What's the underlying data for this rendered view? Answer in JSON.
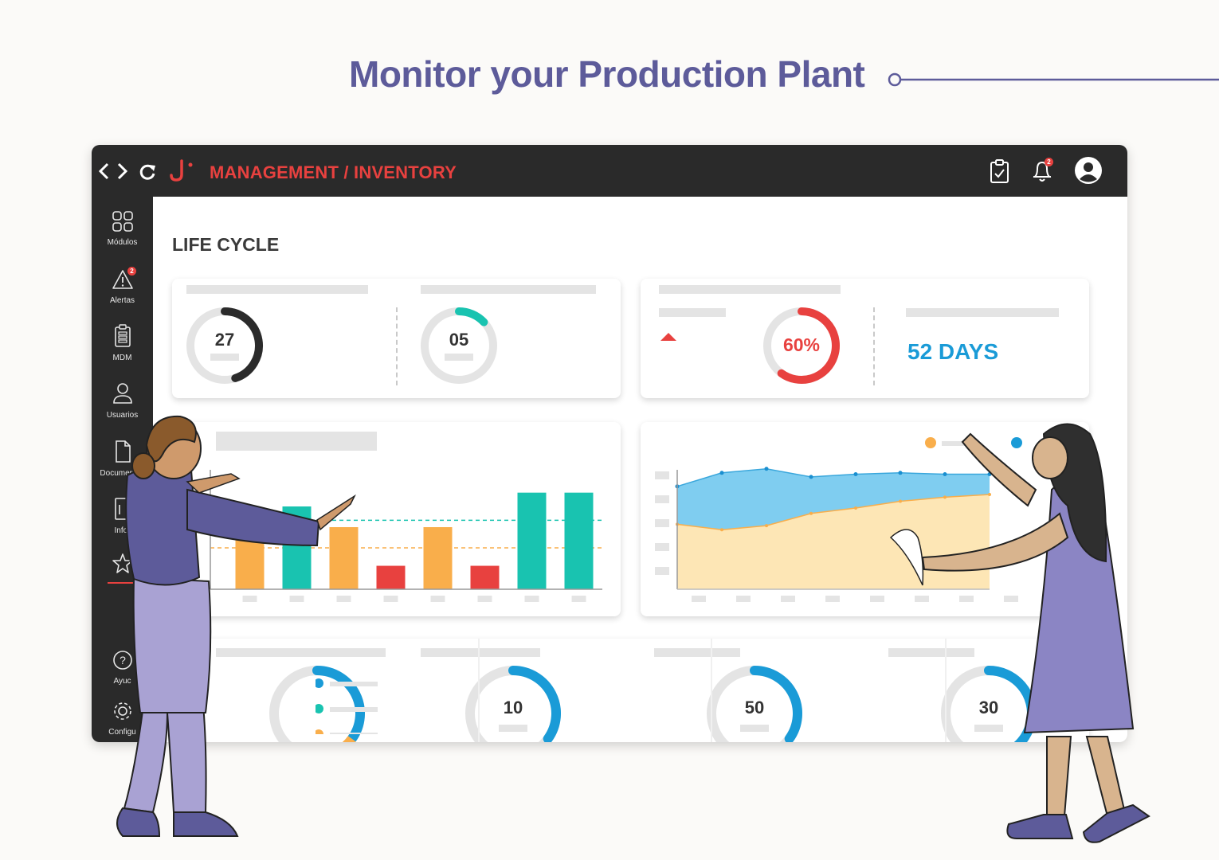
{
  "headline": "Monitor your Production Plant",
  "topbar": {
    "breadcrumb": "MANAGEMENT / INVENTORY",
    "notification_badge": "2",
    "icons": [
      "code-icon",
      "refresh-icon",
      "brand-logo-icon",
      "clipboard-check-icon",
      "bell-icon",
      "user-avatar-icon"
    ]
  },
  "sidebar": {
    "items": [
      {
        "label": "Módulos",
        "icon": "modules-grid-icon"
      },
      {
        "label": "Alertas",
        "icon": "alert-triangle-icon",
        "badge": "2"
      },
      {
        "label": "MDM",
        "icon": "clipboard-list-icon"
      },
      {
        "label": "Usuarios",
        "icon": "user-icon"
      },
      {
        "label": "Documentos",
        "icon": "document-icon"
      },
      {
        "label": "Infor",
        "icon": "report-icon"
      },
      {
        "label": "",
        "icon": "star-icon"
      },
      {
        "label": "Ayuc",
        "icon": "help-icon"
      },
      {
        "label": "Configu",
        "icon": "settings-gear-icon"
      }
    ]
  },
  "main": {
    "title": "LIFE CYCLE",
    "kpi_left": {
      "gauges": [
        {
          "value": "27",
          "fraction": 0.45,
          "color": "#2b2b2b"
        },
        {
          "value": "05",
          "fraction": 0.13,
          "color": "#19c3b0"
        }
      ]
    },
    "kpi_right": {
      "percent": "60%",
      "percent_fraction": 0.6,
      "days": "52 DAYS",
      "trend": "up",
      "colors": {
        "percent": "#e8413f",
        "days": "#1a9bd7"
      }
    },
    "bottom_gauges": [
      {
        "value": "",
        "fraction": 0.35,
        "color": "#1a9bd7",
        "secondary_color": "#f9ae4b"
      },
      {
        "value": "10",
        "fraction": 0.35,
        "color": "#1a9bd7"
      },
      {
        "value": "50",
        "fraction": 0.35,
        "color": "#1a9bd7"
      },
      {
        "value": "30",
        "fraction": 0.55,
        "color": "#1a9bd7"
      }
    ],
    "legend_dot_colors": [
      "#1a9bd7",
      "#19c3b0",
      "#f9ae4b"
    ]
  },
  "chart_data": [
    {
      "type": "bar",
      "categories": [
        "",
        "",
        "",
        "",
        "",
        "",
        "",
        ""
      ],
      "values": [
        55,
        60,
        45,
        17,
        45,
        17,
        70,
        70
      ],
      "bar_colors": [
        "#f9ae4b",
        "#19c3b0",
        "#f9ae4b",
        "#e8413f",
        "#f9ae4b",
        "#e8413f",
        "#19c3b0",
        "#19c3b0"
      ],
      "reference_lines": [
        50,
        30
      ],
      "ylim": [
        0,
        75
      ]
    },
    {
      "type": "area",
      "x": [
        1,
        2,
        3,
        4,
        5,
        6,
        7,
        8
      ],
      "series": [
        {
          "values": [
            76,
            86,
            89,
            83,
            85,
            86,
            85,
            85
          ],
          "color": "#5bbfe8"
        },
        {
          "values": [
            48,
            44,
            47,
            56,
            60,
            65,
            68,
            70
          ],
          "color": "#f9ae4b"
        }
      ],
      "ylim": [
        0,
        100
      ],
      "legend": "top-right"
    }
  ]
}
